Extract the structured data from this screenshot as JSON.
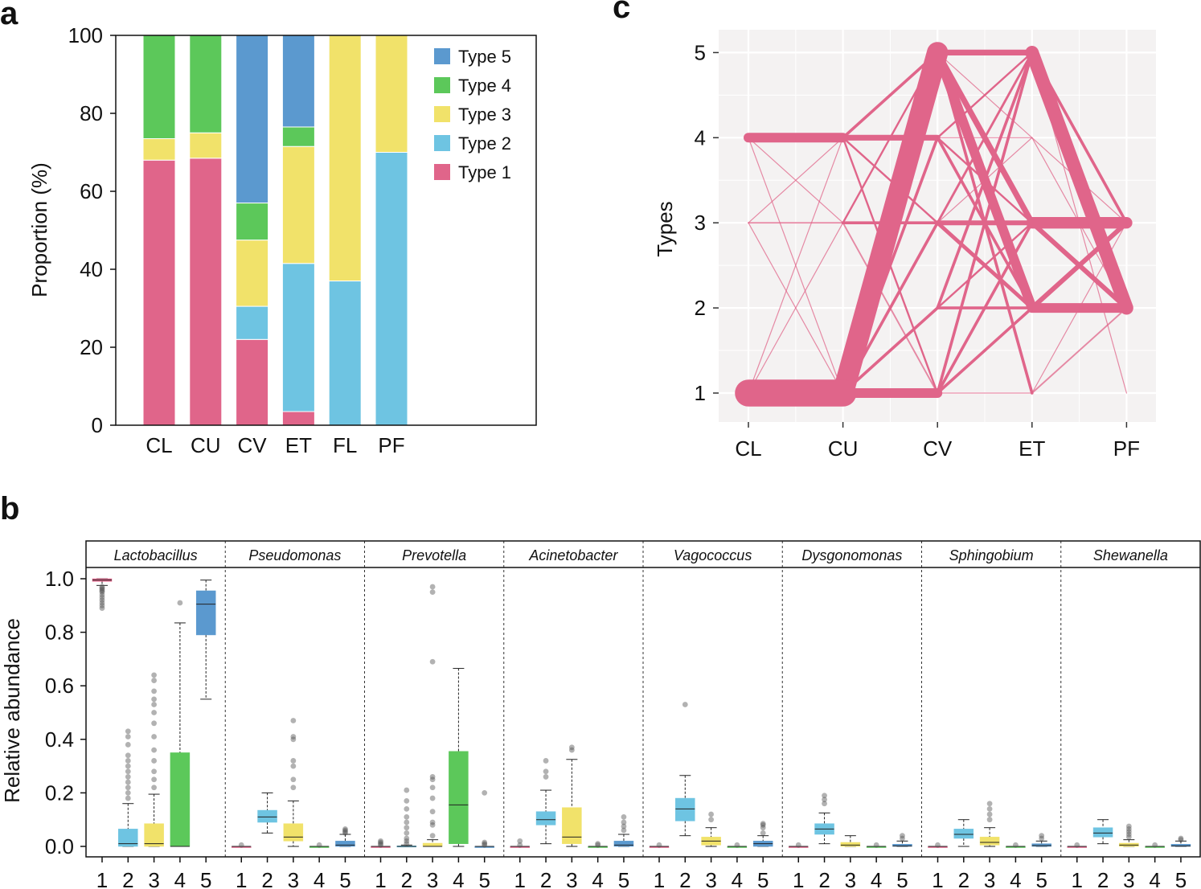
{
  "colors": {
    "type1": "#e0658a",
    "type2": "#6ec4e2",
    "type3": "#f1e26a",
    "type4": "#5cc85a",
    "type5": "#5b99cf",
    "flow": "#e0658a",
    "panel_bg": "#f4f2f2"
  },
  "chart_data": [
    {
      "panel": "a",
      "type": "bar",
      "stacked": true,
      "categories": [
        "CL",
        "CU",
        "CV",
        "ET",
        "FL",
        "PF"
      ],
      "series": [
        {
          "name": "Type 1",
          "values": [
            68,
            68.5,
            22,
            3.5,
            0,
            0
          ]
        },
        {
          "name": "Type 2",
          "values": [
            0,
            0,
            8.5,
            38,
            37,
            70
          ]
        },
        {
          "name": "Type 3",
          "values": [
            5.5,
            6.5,
            17,
            30,
            63,
            30
          ]
        },
        {
          "name": "Type 4",
          "values": [
            26.5,
            25,
            9.5,
            5,
            0,
            0
          ]
        },
        {
          "name": "Type 5",
          "values": [
            0,
            0,
            43,
            23.5,
            0,
            0
          ]
        }
      ],
      "legend": [
        "Type 5",
        "Type 4",
        "Type 3",
        "Type 2",
        "Type 1"
      ],
      "ylabel": "Proportion (%)",
      "xlabel": "",
      "ylim": [
        0,
        100
      ],
      "yticks": [
        "0",
        "20",
        "40",
        "60",
        "80",
        "100"
      ]
    },
    {
      "panel": "b",
      "type": "box",
      "ylabel": "Relative abundance",
      "ylim": [
        0,
        1
      ],
      "yticks": [
        "0.0",
        "0.2",
        "0.4",
        "0.6",
        "0.8",
        "1.0"
      ],
      "xticks": [
        "1",
        "2",
        "3",
        "4",
        "5"
      ],
      "facets": [
        {
          "name": "Lactobacillus",
          "boxes": [
            {
              "q1": 0.99,
              "med": 0.995,
              "q3": 1.0,
              "wlo": 0.975,
              "whi": 1.0,
              "out": [
                0.97,
                0.965,
                0.96,
                0.955,
                0.95,
                0.94,
                0.93,
                0.92,
                0.91,
                0.9,
                0.89
              ]
            },
            {
              "q1": 0.0,
              "med": 0.01,
              "q3": 0.065,
              "wlo": 0.0,
              "whi": 0.16,
              "out": [
                0.18,
                0.2,
                0.22,
                0.24,
                0.26,
                0.28,
                0.3,
                0.32,
                0.34,
                0.38,
                0.41,
                0.43
              ]
            },
            {
              "q1": 0.0,
              "med": 0.01,
              "q3": 0.085,
              "wlo": 0.0,
              "whi": 0.195,
              "out": [
                0.22,
                0.25,
                0.28,
                0.32,
                0.36,
                0.41,
                0.46,
                0.5,
                0.53,
                0.55,
                0.58,
                0.62,
                0.64
              ]
            },
            {
              "q1": 0.0,
              "med": 0.0,
              "q3": 0.35,
              "wlo": 0.0,
              "whi": 0.835,
              "out": [
                0.91
              ]
            },
            {
              "q1": 0.79,
              "med": 0.905,
              "q3": 0.955,
              "wlo": 0.55,
              "whi": 0.995,
              "out": []
            }
          ]
        },
        {
          "name": "Pseudomonas",
          "boxes": [
            {
              "q1": 0.0,
              "med": 0.0,
              "q3": 0.0,
              "wlo": 0.0,
              "whi": 0.0,
              "out": [
                0.005
              ]
            },
            {
              "q1": 0.09,
              "med": 0.11,
              "q3": 0.135,
              "wlo": 0.05,
              "whi": 0.2,
              "out": []
            },
            {
              "q1": 0.02,
              "med": 0.035,
              "q3": 0.085,
              "wlo": 0.0,
              "whi": 0.17,
              "out": [
                0.22,
                0.25,
                0.3,
                0.32,
                0.4,
                0.41,
                0.47
              ]
            },
            {
              "q1": 0.0,
              "med": 0.0,
              "q3": 0.0,
              "wlo": 0.0,
              "whi": 0.0,
              "out": [
                0.005
              ]
            },
            {
              "q1": 0.0,
              "med": 0.005,
              "q3": 0.02,
              "wlo": 0.0,
              "whi": 0.045,
              "out": [
                0.05,
                0.055,
                0.06,
                0.065
              ]
            }
          ]
        },
        {
          "name": "Prevotella",
          "boxes": [
            {
              "q1": 0.0,
              "med": 0.0,
              "q3": 0.0,
              "wlo": 0.0,
              "whi": 0.0,
              "out": [
                0.005,
                0.01,
                0.015,
                0.02
              ]
            },
            {
              "q1": 0.0,
              "med": 0.0,
              "q3": 0.002,
              "wlo": 0.0,
              "whi": 0.005,
              "out": [
                0.01,
                0.02,
                0.03,
                0.05,
                0.07,
                0.09,
                0.11,
                0.14,
                0.17,
                0.21
              ]
            },
            {
              "q1": 0.0,
              "med": 0.0,
              "q3": 0.012,
              "wlo": 0.0,
              "whi": 0.025,
              "out": [
                0.04,
                0.08,
                0.09,
                0.13,
                0.18,
                0.22,
                0.25,
                0.26,
                0.69,
                0.95,
                0.97
              ]
            },
            {
              "q1": 0.01,
              "med": 0.155,
              "q3": 0.355,
              "wlo": 0.0,
              "whi": 0.665,
              "out": []
            },
            {
              "q1": 0.0,
              "med": 0.0,
              "q3": 0.0,
              "wlo": 0.0,
              "whi": 0.0,
              "out": [
                0.005,
                0.01,
                0.015,
                0.2
              ]
            }
          ]
        },
        {
          "name": "Acinetobacter",
          "boxes": [
            {
              "q1": 0.0,
              "med": 0.0,
              "q3": 0.0,
              "wlo": 0.0,
              "whi": 0.0,
              "out": [
                0.005,
                0.02
              ]
            },
            {
              "q1": 0.08,
              "med": 0.1,
              "q3": 0.13,
              "wlo": 0.01,
              "whi": 0.21,
              "out": [
                0.26,
                0.28,
                0.32
              ]
            },
            {
              "q1": 0.01,
              "med": 0.035,
              "q3": 0.145,
              "wlo": 0.0,
              "whi": 0.325,
              "out": [
                0.36,
                0.37
              ]
            },
            {
              "q1": 0.0,
              "med": 0.0,
              "q3": 0.0,
              "wlo": 0.0,
              "whi": 0.0,
              "out": [
                0.005,
                0.01
              ]
            },
            {
              "q1": 0.0,
              "med": 0.005,
              "q3": 0.02,
              "wlo": 0.0,
              "whi": 0.045,
              "out": [
                0.06,
                0.075,
                0.09,
                0.11
              ]
            }
          ]
        },
        {
          "name": "Vagococcus",
          "boxes": [
            {
              "q1": 0.0,
              "med": 0.0,
              "q3": 0.0,
              "wlo": 0.0,
              "whi": 0.0,
              "out": [
                0.005
              ]
            },
            {
              "q1": 0.095,
              "med": 0.14,
              "q3": 0.18,
              "wlo": 0.04,
              "whi": 0.265,
              "out": [
                0.53
              ]
            },
            {
              "q1": 0.005,
              "med": 0.02,
              "q3": 0.035,
              "wlo": 0.0,
              "whi": 0.07,
              "out": [
                0.1,
                0.12
              ]
            },
            {
              "q1": 0.0,
              "med": 0.0,
              "q3": 0.0,
              "wlo": 0.0,
              "whi": 0.0,
              "out": [
                0.005
              ]
            },
            {
              "q1": 0.0,
              "med": 0.01,
              "q3": 0.02,
              "wlo": 0.0,
              "whi": 0.04,
              "out": [
                0.05,
                0.07,
                0.08,
                0.085
              ]
            }
          ]
        },
        {
          "name": "Dysgonomonas",
          "boxes": [
            {
              "q1": 0.0,
              "med": 0.0,
              "q3": 0.0,
              "wlo": 0.0,
              "whi": 0.0,
              "out": [
                0.005
              ]
            },
            {
              "q1": 0.045,
              "med": 0.065,
              "q3": 0.085,
              "wlo": 0.01,
              "whi": 0.125,
              "out": [
                0.16,
                0.175,
                0.19
              ]
            },
            {
              "q1": 0.0,
              "med": 0.005,
              "q3": 0.015,
              "wlo": 0.0,
              "whi": 0.04,
              "out": []
            },
            {
              "q1": 0.0,
              "med": 0.0,
              "q3": 0.0,
              "wlo": 0.0,
              "whi": 0.0,
              "out": [
                0.005
              ]
            },
            {
              "q1": 0.0,
              "med": 0.002,
              "q3": 0.008,
              "wlo": 0.0,
              "whi": 0.02,
              "out": [
                0.03,
                0.04
              ]
            }
          ]
        },
        {
          "name": "Sphingobium",
          "boxes": [
            {
              "q1": 0.0,
              "med": 0.0,
              "q3": 0.0,
              "wlo": 0.0,
              "whi": 0.0,
              "out": [
                0.005
              ]
            },
            {
              "q1": 0.03,
              "med": 0.045,
              "q3": 0.065,
              "wlo": 0.0,
              "whi": 0.1,
              "out": []
            },
            {
              "q1": 0.005,
              "med": 0.015,
              "q3": 0.035,
              "wlo": 0.0,
              "whi": 0.07,
              "out": [
                0.1,
                0.12,
                0.14,
                0.16
              ]
            },
            {
              "q1": 0.0,
              "med": 0.0,
              "q3": 0.0,
              "wlo": 0.0,
              "whi": 0.0,
              "out": [
                0.005
              ]
            },
            {
              "q1": 0.0,
              "med": 0.003,
              "q3": 0.01,
              "wlo": 0.0,
              "whi": 0.02,
              "out": [
                0.03,
                0.04
              ]
            }
          ]
        },
        {
          "name": "Shewanella",
          "boxes": [
            {
              "q1": 0.0,
              "med": 0.0,
              "q3": 0.0,
              "wlo": 0.0,
              "whi": 0.0,
              "out": [
                0.005
              ]
            },
            {
              "q1": 0.035,
              "med": 0.05,
              "q3": 0.07,
              "wlo": 0.01,
              "whi": 0.1,
              "out": []
            },
            {
              "q1": 0.0,
              "med": 0.005,
              "q3": 0.012,
              "wlo": 0.0,
              "whi": 0.025,
              "out": [
                0.035,
                0.045,
                0.055,
                0.065,
                0.075
              ]
            },
            {
              "q1": 0.0,
              "med": 0.0,
              "q3": 0.0,
              "wlo": 0.0,
              "whi": 0.0,
              "out": [
                0.005
              ]
            },
            {
              "q1": 0.0,
              "med": 0.002,
              "q3": 0.008,
              "wlo": 0.0,
              "whi": 0.02,
              "out": [
                0.025,
                0.03
              ]
            }
          ]
        }
      ]
    },
    {
      "panel": "c",
      "type": "line",
      "subtype": "transition-flow",
      "categories": [
        "CL",
        "CU",
        "CV",
        "ET",
        "PF"
      ],
      "ylabel": "Types",
      "yticks": [
        "1",
        "2",
        "3",
        "4",
        "5"
      ],
      "ylim": [
        0.6,
        5.4
      ],
      "edges": [
        {
          "from": 0,
          "a": 1,
          "b": 1,
          "w": 14
        },
        {
          "from": 0,
          "a": 4,
          "b": 4,
          "w": 5
        },
        {
          "from": 0,
          "a": 3,
          "b": 3,
          "w": 0.8
        },
        {
          "from": 0,
          "a": 1,
          "b": 3,
          "w": 0.5
        },
        {
          "from": 0,
          "a": 1,
          "b": 4,
          "w": 0.5
        },
        {
          "from": 0,
          "a": 4,
          "b": 1,
          "w": 0.5
        },
        {
          "from": 0,
          "a": 4,
          "b": 3,
          "w": 0.5
        },
        {
          "from": 0,
          "a": 3,
          "b": 4,
          "w": 0.5
        },
        {
          "from": 0,
          "a": 3,
          "b": 1,
          "w": 0.5
        },
        {
          "from": 1,
          "a": 1,
          "b": 5,
          "w": 11
        },
        {
          "from": 1,
          "a": 1,
          "b": 1,
          "w": 5
        },
        {
          "from": 1,
          "a": 4,
          "b": 4,
          "w": 3
        },
        {
          "from": 1,
          "a": 4,
          "b": 5,
          "w": 1.5
        },
        {
          "from": 1,
          "a": 4,
          "b": 3,
          "w": 1
        },
        {
          "from": 1,
          "a": 4,
          "b": 1,
          "w": 1
        },
        {
          "from": 1,
          "a": 3,
          "b": 3,
          "w": 1.5
        },
        {
          "from": 1,
          "a": 3,
          "b": 1,
          "w": 0.8
        },
        {
          "from": 1,
          "a": 1,
          "b": 3,
          "w": 1.5
        },
        {
          "from": 1,
          "a": 1,
          "b": 2,
          "w": 1.5
        },
        {
          "from": 1,
          "a": 1,
          "b": 4,
          "w": 1.5
        },
        {
          "from": 1,
          "a": 3,
          "b": 5,
          "w": 1
        },
        {
          "from": 2,
          "a": 5,
          "b": 5,
          "w": 3
        },
        {
          "from": 2,
          "a": 5,
          "b": 2,
          "w": 5
        },
        {
          "from": 2,
          "a": 5,
          "b": 3,
          "w": 3
        },
        {
          "from": 2,
          "a": 5,
          "b": 1,
          "w": 1.5
        },
        {
          "from": 2,
          "a": 5,
          "b": 4,
          "w": 0.5
        },
        {
          "from": 2,
          "a": 4,
          "b": 2,
          "w": 1.5
        },
        {
          "from": 2,
          "a": 4,
          "b": 3,
          "w": 1
        },
        {
          "from": 2,
          "a": 4,
          "b": 5,
          "w": 1
        },
        {
          "from": 2,
          "a": 4,
          "b": 4,
          "w": 0.5
        },
        {
          "from": 2,
          "a": 3,
          "b": 3,
          "w": 2.5
        },
        {
          "from": 2,
          "a": 3,
          "b": 2,
          "w": 2
        },
        {
          "from": 2,
          "a": 3,
          "b": 5,
          "w": 1.2
        },
        {
          "from": 2,
          "a": 3,
          "b": 4,
          "w": 0.5
        },
        {
          "from": 2,
          "a": 2,
          "b": 2,
          "w": 1.5
        },
        {
          "from": 2,
          "a": 2,
          "b": 5,
          "w": 1.5
        },
        {
          "from": 2,
          "a": 2,
          "b": 3,
          "w": 1
        },
        {
          "from": 2,
          "a": 1,
          "b": 1,
          "w": 0.5
        },
        {
          "from": 2,
          "a": 1,
          "b": 5,
          "w": 1.5
        },
        {
          "from": 2,
          "a": 1,
          "b": 3,
          "w": 1.5
        },
        {
          "from": 2,
          "a": 1,
          "b": 2,
          "w": 1.5
        },
        {
          "from": 3,
          "a": 5,
          "b": 2,
          "w": 7
        },
        {
          "from": 3,
          "a": 5,
          "b": 3,
          "w": 1.5
        },
        {
          "from": 3,
          "a": 5,
          "b": 1,
          "w": 0.5
        },
        {
          "from": 3,
          "a": 3,
          "b": 3,
          "w": 6
        },
        {
          "from": 3,
          "a": 3,
          "b": 2,
          "w": 2.5
        },
        {
          "from": 3,
          "a": 2,
          "b": 2,
          "w": 5
        },
        {
          "from": 3,
          "a": 2,
          "b": 3,
          "w": 2.5
        },
        {
          "from": 3,
          "a": 4,
          "b": 3,
          "w": 0.5
        },
        {
          "from": 3,
          "a": 4,
          "b": 2,
          "w": 0.5
        },
        {
          "from": 3,
          "a": 1,
          "b": 2,
          "w": 0.8
        },
        {
          "from": 3,
          "a": 1,
          "b": 3,
          "w": 0.5
        }
      ]
    }
  ],
  "panel_labels": {
    "a": "a",
    "b": "b",
    "c": "c"
  }
}
